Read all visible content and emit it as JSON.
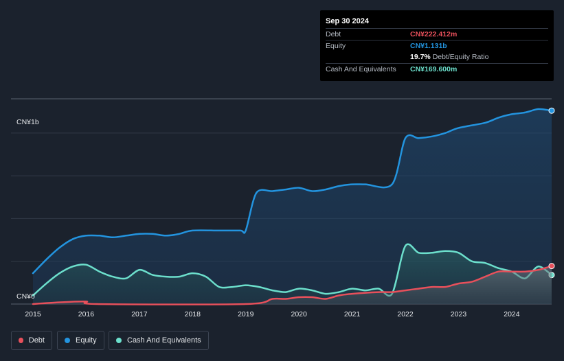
{
  "tooltip": {
    "date": "Sep 30 2024",
    "debt": {
      "label": "Debt",
      "value": "CN¥222.412m"
    },
    "equity": {
      "label": "Equity",
      "value": "CN¥1.131b"
    },
    "ratio": {
      "value": "19.7%",
      "label": "Debt/Equity Ratio"
    },
    "cash": {
      "label": "Cash And Equivalents",
      "value": "CN¥169.600m"
    }
  },
  "legend": [
    {
      "label": "Debt",
      "color": "#e8505b"
    },
    {
      "label": "Equity",
      "color": "#2394df"
    },
    {
      "label": "Cash And Equivalents",
      "color": "#6cdfcc"
    }
  ],
  "chart_data": {
    "type": "area",
    "y_unit_label_top": "CN¥1b",
    "y_unit_label_bottom": "CN¥0",
    "ylim": [
      0,
      1.2
    ],
    "xlim": [
      2015.0,
      2024.75
    ],
    "x_ticks": [
      "2015",
      "2016",
      "2017",
      "2018",
      "2019",
      "2020",
      "2021",
      "2022",
      "2023",
      "2024"
    ],
    "grid": true,
    "legend_position": "bottom-left",
    "series": [
      {
        "name": "Equity",
        "color": "#2394df",
        "points": [
          [
            2015.0,
            0.18
          ],
          [
            2015.25,
            0.26
          ],
          [
            2015.5,
            0.33
          ],
          [
            2015.75,
            0.38
          ],
          [
            2016.0,
            0.4
          ],
          [
            2016.25,
            0.4
          ],
          [
            2016.5,
            0.39
          ],
          [
            2016.75,
            0.4
          ],
          [
            2017.0,
            0.41
          ],
          [
            2017.25,
            0.41
          ],
          [
            2017.5,
            0.4
          ],
          [
            2017.75,
            0.41
          ],
          [
            2018.0,
            0.43
          ],
          [
            2018.5,
            0.43
          ],
          [
            2018.9,
            0.43
          ],
          [
            2019.0,
            0.43
          ],
          [
            2019.2,
            0.65
          ],
          [
            2019.5,
            0.66
          ],
          [
            2019.75,
            0.67
          ],
          [
            2020.0,
            0.68
          ],
          [
            2020.25,
            0.66
          ],
          [
            2020.5,
            0.67
          ],
          [
            2020.75,
            0.69
          ],
          [
            2021.0,
            0.7
          ],
          [
            2021.25,
            0.7
          ],
          [
            2021.75,
            0.7
          ],
          [
            2022.0,
            0.97
          ],
          [
            2022.25,
            0.97
          ],
          [
            2022.5,
            0.98
          ],
          [
            2022.75,
            1.0
          ],
          [
            2023.0,
            1.03
          ],
          [
            2023.5,
            1.06
          ],
          [
            2023.75,
            1.09
          ],
          [
            2024.0,
            1.11
          ],
          [
            2024.25,
            1.12
          ],
          [
            2024.5,
            1.14
          ],
          [
            2024.75,
            1.131
          ]
        ]
      },
      {
        "name": "Cash And Equivalents",
        "color": "#6cdfcc",
        "points": [
          [
            2015.0,
            0.05
          ],
          [
            2015.25,
            0.12
          ],
          [
            2015.5,
            0.18
          ],
          [
            2015.75,
            0.22
          ],
          [
            2016.0,
            0.23
          ],
          [
            2016.25,
            0.19
          ],
          [
            2016.5,
            0.16
          ],
          [
            2016.75,
            0.15
          ],
          [
            2017.0,
            0.2
          ],
          [
            2017.25,
            0.17
          ],
          [
            2017.5,
            0.16
          ],
          [
            2017.75,
            0.16
          ],
          [
            2018.0,
            0.18
          ],
          [
            2018.25,
            0.16
          ],
          [
            2018.5,
            0.1
          ],
          [
            2018.75,
            0.1
          ],
          [
            2019.0,
            0.11
          ],
          [
            2019.25,
            0.1
          ],
          [
            2019.5,
            0.08
          ],
          [
            2019.75,
            0.07
          ],
          [
            2020.0,
            0.09
          ],
          [
            2020.25,
            0.08
          ],
          [
            2020.5,
            0.06
          ],
          [
            2020.75,
            0.07
          ],
          [
            2021.0,
            0.09
          ],
          [
            2021.25,
            0.08
          ],
          [
            2021.5,
            0.09
          ],
          [
            2021.75,
            0.06
          ],
          [
            2022.0,
            0.34
          ],
          [
            2022.25,
            0.3
          ],
          [
            2022.5,
            0.3
          ],
          [
            2022.75,
            0.31
          ],
          [
            2023.0,
            0.3
          ],
          [
            2023.25,
            0.25
          ],
          [
            2023.5,
            0.24
          ],
          [
            2023.75,
            0.21
          ],
          [
            2024.0,
            0.19
          ],
          [
            2024.25,
            0.15
          ],
          [
            2024.5,
            0.22
          ],
          [
            2024.75,
            0.1696
          ]
        ]
      },
      {
        "name": "Debt",
        "color": "#e8505b",
        "points": [
          [
            2015.0,
            0.0
          ],
          [
            2015.5,
            0.01
          ],
          [
            2016.0,
            0.015
          ],
          [
            2016.2,
            0.0
          ],
          [
            2019.0,
            0.0
          ],
          [
            2019.5,
            0.03
          ],
          [
            2019.75,
            0.03
          ],
          [
            2020.0,
            0.04
          ],
          [
            2020.25,
            0.04
          ],
          [
            2020.5,
            0.03
          ],
          [
            2020.75,
            0.05
          ],
          [
            2021.0,
            0.06
          ],
          [
            2021.5,
            0.07
          ],
          [
            2021.75,
            0.07
          ],
          [
            2022.0,
            0.08
          ],
          [
            2022.25,
            0.09
          ],
          [
            2022.5,
            0.1
          ],
          [
            2022.75,
            0.1
          ],
          [
            2023.0,
            0.12
          ],
          [
            2023.25,
            0.13
          ],
          [
            2023.5,
            0.16
          ],
          [
            2023.75,
            0.19
          ],
          [
            2024.0,
            0.19
          ],
          [
            2024.25,
            0.19
          ],
          [
            2024.5,
            0.2
          ],
          [
            2024.75,
            0.2224
          ]
        ]
      }
    ]
  }
}
